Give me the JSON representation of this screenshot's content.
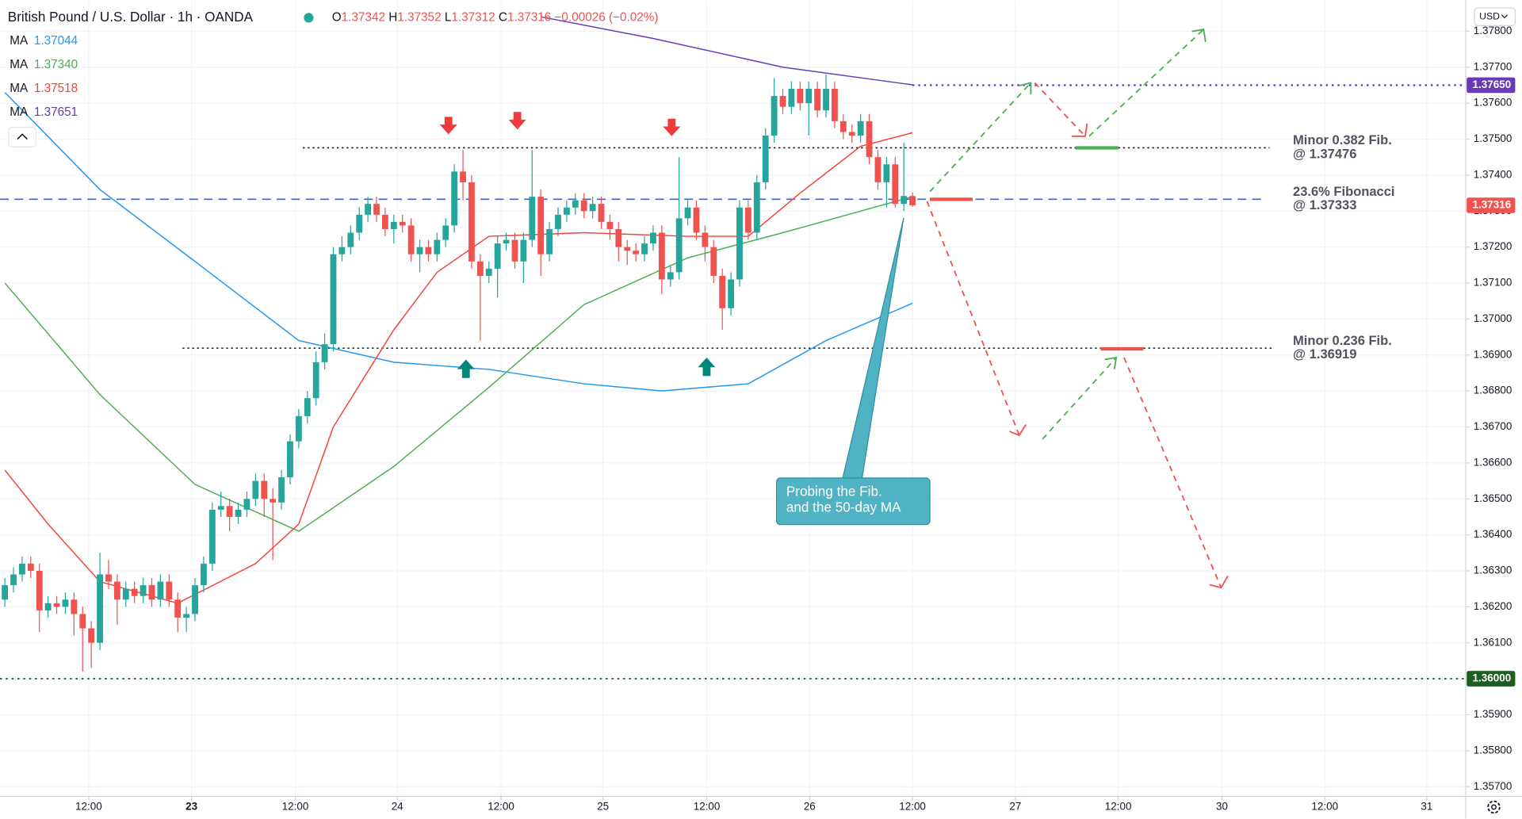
{
  "chart_data": {
    "type": "candlestick",
    "title": "British Pound / U.S. Dollar · 1h · OANDA",
    "ohlc_labels": [
      "O",
      "H",
      "L",
      "C"
    ],
    "change": "−0.00026 (−0.02%)",
    "currency": "USD",
    "up_color": "#26a69a",
    "down_color": "#ef5350",
    "grid": true,
    "xlim": [
      -0.56,
      169
    ],
    "ylim": [
      1.35673,
      1.37886
    ],
    "xticks": [
      {
        "value": 9.7,
        "label": "12:00"
      },
      {
        "value": 21.6,
        "label": "23"
      },
      {
        "value": 33.6,
        "label": "12:00"
      },
      {
        "value": 45.4,
        "label": "24"
      },
      {
        "value": 57.4,
        "label": "12:00"
      },
      {
        "value": 69.2,
        "label": "25"
      },
      {
        "value": 81.2,
        "label": "12:00"
      },
      {
        "value": 93.1,
        "label": "26"
      },
      {
        "value": 105,
        "label": "12:00"
      },
      {
        "value": 116.9,
        "label": "27"
      },
      {
        "value": 128.8,
        "label": "12:00"
      },
      {
        "value": 140.8,
        "label": "30"
      },
      {
        "value": 152.7,
        "label": "12:00"
      },
      {
        "value": 164.5,
        "label": "31"
      }
    ],
    "yticks": [
      {
        "value": 1.378,
        "label": "1.37800"
      },
      {
        "value": 1.377,
        "label": "1.37700"
      },
      {
        "value": 1.376,
        "label": "1.37600"
      },
      {
        "value": 1.375,
        "label": "1.37500"
      },
      {
        "value": 1.374,
        "label": "1.37400"
      },
      {
        "value": 1.373,
        "label": "1.37300"
      },
      {
        "value": 1.372,
        "label": "1.37200"
      },
      {
        "value": 1.371,
        "label": "1.37100"
      },
      {
        "value": 1.37,
        "label": "1.37000"
      },
      {
        "value": 1.369,
        "label": "1.36900"
      },
      {
        "value": 1.368,
        "label": "1.36800"
      },
      {
        "value": 1.367,
        "label": "1.36700"
      },
      {
        "value": 1.366,
        "label": "1.36600"
      },
      {
        "value": 1.365,
        "label": "1.36500"
      },
      {
        "value": 1.364,
        "label": "1.36400"
      },
      {
        "value": 1.363,
        "label": "1.36300"
      },
      {
        "value": 1.362,
        "label": "1.36200"
      },
      {
        "value": 1.361,
        "label": "1.36100"
      },
      {
        "value": 1.36,
        "label": "1.36000"
      },
      {
        "value": 1.359,
        "label": "1.35900"
      },
      {
        "value": 1.358,
        "label": "1.35800"
      },
      {
        "value": 1.357,
        "label": "1.35700"
      }
    ],
    "open": [
      1.3622,
      1.3626,
      1.3629,
      1.3632,
      1.363,
      1.3619,
      1.3621,
      1.362,
      1.3622,
      1.3618,
      1.3614,
      1.361,
      1.3629,
      1.3627,
      1.3622,
      1.3625,
      1.3623,
      1.3626,
      1.3622,
      1.3627,
      1.3622,
      1.3617,
      1.3618,
      1.3626,
      1.3632,
      1.3647,
      1.3648,
      1.3645,
      1.3647,
      1.365,
      1.3655,
      1.365,
      1.3649,
      1.3656,
      1.3666,
      1.3673,
      1.3678,
      1.3688,
      1.3693,
      1.3718,
      1.372,
      1.3724,
      1.3729,
      1.3732,
      1.3729,
      1.3725,
      1.3727,
      1.3726,
      1.3718,
      1.372,
      1.3718,
      1.3722,
      1.3726,
      1.3741,
      1.3738,
      1.3716,
      1.3712,
      1.3714,
      1.3721,
      1.3722,
      1.3716,
      1.3722,
      1.3734,
      1.3718,
      1.3725,
      1.3729,
      1.3731,
      1.3733,
      1.373,
      1.3732,
      1.3727,
      1.3725,
      1.372,
      1.3719,
      1.3718,
      1.3721,
      1.3724,
      1.3711,
      1.3713,
      1.3728,
      1.3731,
      1.3724,
      1.372,
      1.3712,
      1.3703,
      1.3711,
      1.3731,
      1.3724,
      1.3738,
      1.3751,
      1.3762,
      1.3759,
      1.3764,
      1.376,
      1.3764,
      1.3758,
      1.3764,
      1.3755,
      1.3752,
      1.3751,
      1.3755,
      1.3745,
      1.3738,
      1.3743,
      1.3732,
      1.37342
    ],
    "high": [
      1.3628,
      1.3631,
      1.3634,
      1.3634,
      1.3632,
      1.3623,
      1.3623,
      1.3624,
      1.3624,
      1.362,
      1.3616,
      1.3635,
      1.3633,
      1.3629,
      1.3627,
      1.3627,
      1.3628,
      1.3628,
      1.3629,
      1.3629,
      1.3624,
      1.362,
      1.3628,
      1.3634,
      1.3649,
      1.3652,
      1.365,
      1.3649,
      1.3652,
      1.3657,
      1.3657,
      1.3653,
      1.3658,
      1.3668,
      1.3675,
      1.368,
      1.3691,
      1.3696,
      1.372,
      1.3723,
      1.3726,
      1.3731,
      1.3734,
      1.3734,
      1.3731,
      1.3729,
      1.3729,
      1.3728,
      1.3722,
      1.3722,
      1.3724,
      1.3728,
      1.3743,
      1.3747,
      1.374,
      1.3718,
      1.3716,
      1.3723,
      1.3724,
      1.3724,
      1.3724,
      1.3747,
      1.3736,
      1.3727,
      1.3731,
      1.3733,
      1.3735,
      1.3735,
      1.3734,
      1.3734,
      1.3729,
      1.3727,
      1.3722,
      1.3721,
      1.3723,
      1.3726,
      1.3726,
      1.3715,
      1.3745,
      1.3733,
      1.3733,
      1.3726,
      1.3722,
      1.3714,
      1.3713,
      1.3733,
      1.3733,
      1.374,
      1.3753,
      1.3767,
      1.3764,
      1.3766,
      1.3766,
      1.3766,
      1.3766,
      1.3768,
      1.3766,
      1.3757,
      1.3754,
      1.3757,
      1.3757,
      1.3747,
      1.3745,
      1.3745,
      1.3749,
      1.37352
    ],
    "low": [
      1.362,
      1.3624,
      1.3627,
      1.3628,
      1.3613,
      1.3617,
      1.3618,
      1.3618,
      1.3612,
      1.3602,
      1.3603,
      1.3608,
      1.3625,
      1.3615,
      1.362,
      1.3621,
      1.3621,
      1.362,
      1.362,
      1.362,
      1.3613,
      1.3613,
      1.3616,
      1.3624,
      1.363,
      1.3645,
      1.3641,
      1.3643,
      1.3645,
      1.3648,
      1.3645,
      1.3633,
      1.3647,
      1.3654,
      1.3664,
      1.3671,
      1.3676,
      1.3686,
      1.3691,
      1.3716,
      1.3718,
      1.3722,
      1.3727,
      1.3727,
      1.3723,
      1.3721,
      1.3724,
      1.3716,
      1.3713,
      1.3716,
      1.3716,
      1.372,
      1.3724,
      1.3733,
      1.3714,
      1.3694,
      1.371,
      1.3706,
      1.3719,
      1.3714,
      1.371,
      1.372,
      1.3712,
      1.3716,
      1.3723,
      1.3727,
      1.3729,
      1.3728,
      1.3728,
      1.3725,
      1.3722,
      1.3716,
      1.3715,
      1.3716,
      1.3716,
      1.3719,
      1.3707,
      1.3709,
      1.3711,
      1.3726,
      1.3722,
      1.3716,
      1.371,
      1.3697,
      1.3701,
      1.3709,
      1.3722,
      1.3722,
      1.3736,
      1.3749,
      1.3757,
      1.3757,
      1.3758,
      1.3751,
      1.3756,
      1.3756,
      1.3753,
      1.375,
      1.3749,
      1.3749,
      1.3743,
      1.3736,
      1.3731,
      1.3731,
      1.373,
      1.37312
    ],
    "close": [
      1.3626,
      1.3629,
      1.3632,
      1.363,
      1.3619,
      1.3621,
      1.362,
      1.3622,
      1.3618,
      1.3614,
      1.361,
      1.3629,
      1.3627,
      1.3622,
      1.3625,
      1.3623,
      1.3626,
      1.3622,
      1.3627,
      1.3622,
      1.3617,
      1.3618,
      1.3626,
      1.3632,
      1.3647,
      1.3648,
      1.3645,
      1.3647,
      1.365,
      1.3655,
      1.365,
      1.3649,
      1.3656,
      1.3666,
      1.3673,
      1.3678,
      1.3688,
      1.3693,
      1.3718,
      1.372,
      1.3724,
      1.3729,
      1.3732,
      1.3729,
      1.3725,
      1.3727,
      1.3726,
      1.3718,
      1.372,
      1.3718,
      1.3722,
      1.3726,
      1.3741,
      1.3738,
      1.3716,
      1.3712,
      1.3714,
      1.3721,
      1.3722,
      1.3716,
      1.3722,
      1.3734,
      1.3718,
      1.3725,
      1.3729,
      1.3731,
      1.3733,
      1.373,
      1.3732,
      1.3727,
      1.3725,
      1.372,
      1.3719,
      1.3718,
      1.3721,
      1.3724,
      1.3711,
      1.3713,
      1.3728,
      1.3731,
      1.3724,
      1.372,
      1.3712,
      1.3703,
      1.3711,
      1.3731,
      1.3724,
      1.3738,
      1.3751,
      1.3762,
      1.3759,
      1.3764,
      1.376,
      1.3764,
      1.3758,
      1.3764,
      1.3755,
      1.3752,
      1.3751,
      1.3755,
      1.3745,
      1.3738,
      1.3743,
      1.3732,
      1.37342,
      1.37316
    ],
    "series": [
      {
        "name": "MA",
        "color": "#2196f3",
        "x": [
          0,
          11,
          22,
          34,
          45,
          56,
          67,
          76,
          86,
          95,
          105
        ],
        "values": [
          1.3763,
          1.3736,
          1.3716,
          1.3694,
          1.3688,
          1.3686,
          1.3682,
          1.368,
          1.3682,
          1.3694,
          1.37044
        ]
      },
      {
        "name": "MA",
        "color": "#4caf50",
        "x": [
          0,
          11,
          22,
          34,
          45,
          56,
          67,
          79,
          90,
          105
        ],
        "values": [
          1.371,
          1.3679,
          1.3654,
          1.3641,
          1.3659,
          1.3681,
          1.3704,
          1.3717,
          1.3724,
          1.3734
        ],
        "value_labels": [
          null,
          null,
          null,
          null,
          null,
          null,
          null,
          null,
          null,
          "1.37340"
        ]
      },
      {
        "name": "MA",
        "color": "#f44336",
        "x": [
          0,
          5,
          11,
          20,
          29,
          34,
          38,
          45,
          50,
          56,
          67,
          79,
          86,
          92,
          99,
          105
        ],
        "values": [
          1.3658,
          1.3643,
          1.3627,
          1.3621,
          1.3632,
          1.3643,
          1.367,
          1.3697,
          1.3713,
          1.3723,
          1.3724,
          1.3723,
          1.3723,
          1.3735,
          1.3748,
          1.37518
        ]
      },
      {
        "name": "MA",
        "color": "#673ab7",
        "x": [
          62,
          75,
          90,
          105
        ],
        "values": [
          1.3784,
          1.3778,
          1.377,
          1.37651
        ]
      }
    ],
    "levels": [
      {
        "value": 1.37476,
        "color": "#131722",
        "labels": [
          "Minor 0.382 Fib.",
          "@ 1.37476"
        ]
      },
      {
        "value": 1.37333,
        "color": "#2962ff",
        "labels": [
          "23.6% Fibonacci",
          "@ 1.37333"
        ]
      },
      {
        "value": 1.36919,
        "color": "#131722",
        "labels": [
          "Minor 0.236 Fib.",
          "@ 1.36919"
        ]
      },
      {
        "value": 1.3765,
        "color": "#673ab7",
        "label": "1.37650"
      },
      {
        "value": 1.36,
        "color": "#1b5e20",
        "label": "1.36000"
      }
    ],
    "annotation": [
      "Probing the Fib.",
      "and the 50-day MA"
    ]
  }
}
